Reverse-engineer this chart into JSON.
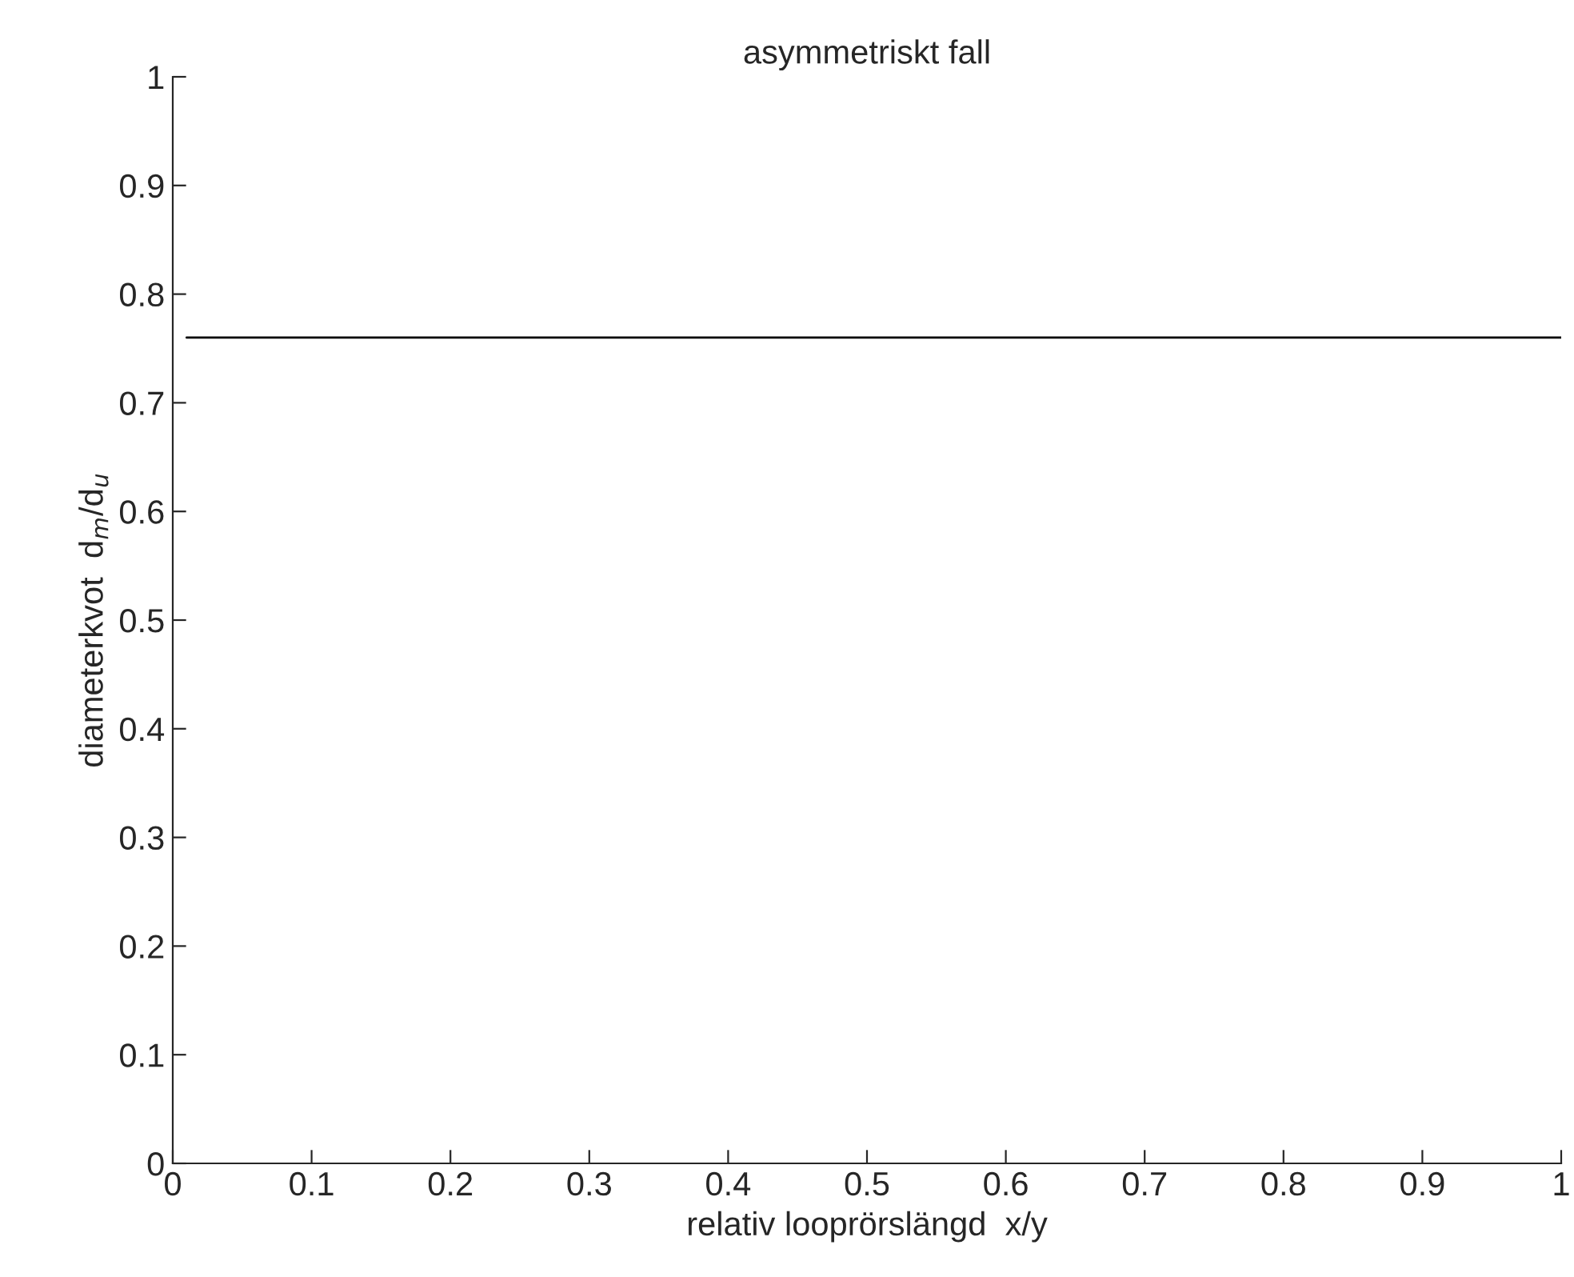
{
  "chart_data": {
    "type": "line",
    "title": "asymmetriskt fall",
    "xlabel": "relativ looprörslängd  x/y",
    "ylabel": "diameterkvot  d$_{m}$/d$_{u}$",
    "x": [
      0.01,
      1
    ],
    "series": [
      {
        "color": "#000000",
        "values": [
          0.76,
          0.76
        ]
      }
    ],
    "xlim": [
      0,
      1
    ],
    "ylim": [
      0,
      1
    ],
    "xticks": [
      0,
      0.1,
      0.2,
      0.3,
      0.4,
      0.5,
      0.6,
      0.7,
      0.8,
      0.9,
      1
    ],
    "yticks": [
      0,
      0.1,
      0.2,
      0.3,
      0.4,
      0.5,
      0.6,
      0.7,
      0.8,
      0.9,
      1
    ],
    "grid": false,
    "line_style": "solid",
    "marker": "none"
  }
}
